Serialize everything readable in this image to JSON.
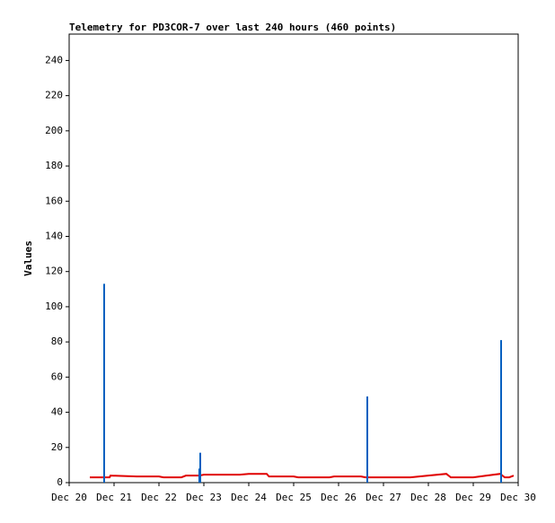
{
  "chart_data": {
    "type": "line",
    "title": "Telemetry for PD3COR-7 over last 240 hours (460 points)",
    "y_label": "Values",
    "xlim": [
      0,
      10
    ],
    "xticks": [
      {
        "value": 0,
        "label": "Dec 20"
      },
      {
        "value": 1,
        "label": "Dec 21"
      },
      {
        "value": 2,
        "label": "Dec 22"
      },
      {
        "value": 3,
        "label": "Dec 23"
      },
      {
        "value": 4,
        "label": "Dec 24"
      },
      {
        "value": 5,
        "label": "Dec 25"
      },
      {
        "value": 6,
        "label": "Dec 26"
      },
      {
        "value": 7,
        "label": "Dec 27"
      },
      {
        "value": 8,
        "label": "Dec 28"
      },
      {
        "value": 9,
        "label": "Dec 29"
      },
      {
        "value": 10,
        "label": "Dec 30"
      }
    ],
    "ylim": [
      0,
      255
    ],
    "yticks": [
      0,
      20,
      40,
      60,
      80,
      100,
      120,
      140,
      160,
      180,
      200,
      220,
      240
    ],
    "series": [
      {
        "style": "line",
        "color": "#e00000",
        "x": [
          0.46,
          0.9,
          0.92,
          1.5,
          2.0,
          2.1,
          2.5,
          2.6,
          2.9,
          3.0,
          3.8,
          4.0,
          4.4,
          4.45,
          5.0,
          5.1,
          5.8,
          5.9,
          6.5,
          6.6,
          7.6,
          8.0,
          8.4,
          8.5,
          9.0,
          9.3,
          9.6,
          9.7,
          9.8,
          9.9
        ],
        "values": [
          3,
          3,
          4,
          3.5,
          3.5,
          3,
          3,
          4,
          4,
          4.5,
          4.5,
          5,
          5,
          3.5,
          3.5,
          3,
          3,
          3.5,
          3.5,
          3,
          3,
          4,
          5,
          3,
          3,
          4,
          5,
          3,
          3,
          4
        ]
      },
      {
        "style": "impulse",
        "color": "#0060c0",
        "x": [
          0.78,
          2.9,
          2.92,
          6.64,
          9.62
        ],
        "values": [
          113,
          8,
          17,
          49,
          81
        ]
      }
    ]
  }
}
